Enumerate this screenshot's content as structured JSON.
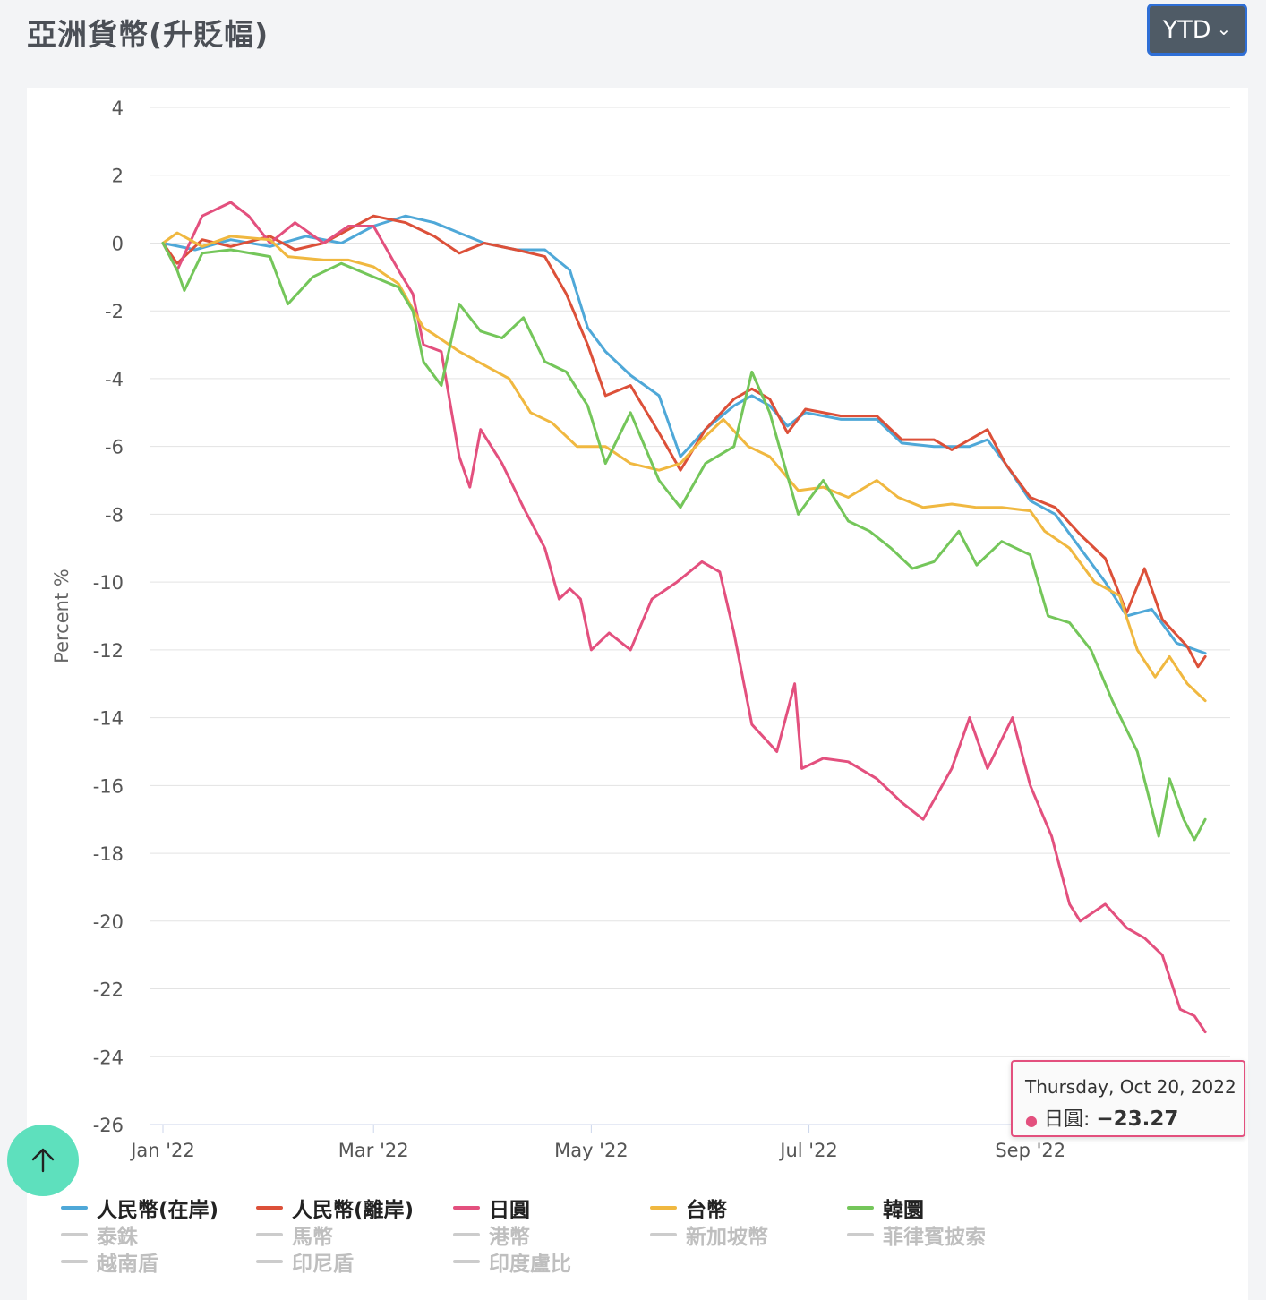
{
  "header": {
    "title": "亞洲貨幣(升貶幅)",
    "range_label": "YTD"
  },
  "tooltip": {
    "date": "Thursday, Oct 20, 2022",
    "series": "日圓",
    "value": "−23.27"
  },
  "legend": [
    {
      "name": "人民幣(在岸)",
      "color": "#4fa8d8",
      "active": true
    },
    {
      "name": "人民幣(離岸)",
      "color": "#dc5039",
      "active": true
    },
    {
      "name": "日圓",
      "color": "#e3507e",
      "active": true
    },
    {
      "name": "台幣",
      "color": "#f0b840",
      "active": true
    },
    {
      "name": "韓圜",
      "color": "#74c65a",
      "active": true
    },
    {
      "name": "泰銖",
      "color": "#cccccc",
      "active": false
    },
    {
      "name": "馬幣",
      "color": "#cccccc",
      "active": false
    },
    {
      "name": "港幣",
      "color": "#cccccc",
      "active": false
    },
    {
      "name": "新加坡幣",
      "color": "#cccccc",
      "active": false
    },
    {
      "name": "菲律賓披索",
      "color": "#cccccc",
      "active": false
    },
    {
      "name": "越南盾",
      "color": "#cccccc",
      "active": false
    },
    {
      "name": "印尼盾",
      "color": "#cccccc",
      "active": false
    },
    {
      "name": "印度盧比",
      "color": "#cccccc",
      "active": false
    }
  ],
  "chart_data": {
    "type": "line",
    "title": "亞洲貨幣(升貶幅)",
    "xlabel": "",
    "ylabel": "Percent %",
    "ylim": [
      -26,
      4
    ],
    "yticks": [
      4,
      2,
      0,
      -2,
      -4,
      -6,
      -8,
      -10,
      -12,
      -14,
      -16,
      -18,
      -20,
      -22,
      -24,
      -26
    ],
    "xlim": [
      "2022-01-01",
      "2022-10-24"
    ],
    "xticks": [
      {
        "date": "2022-01-01",
        "label": "Jan '22"
      },
      {
        "date": "2022-03-01",
        "label": "Mar '22"
      },
      {
        "date": "2022-05-01",
        "label": "May '22"
      },
      {
        "date": "2022-07-01",
        "label": "Jul '22"
      },
      {
        "date": "2022-09-01",
        "label": "Sep '22"
      }
    ],
    "grid": true,
    "legend_position": "bottom",
    "series": [
      {
        "name": "人民幣(在岸)",
        "color": "#4fa8d8",
        "points": [
          [
            "2022-01-01",
            0
          ],
          [
            "2022-01-10",
            -0.2
          ],
          [
            "2022-01-20",
            0.1
          ],
          [
            "2022-01-31",
            -0.1
          ],
          [
            "2022-02-10",
            0.2
          ],
          [
            "2022-02-20",
            0
          ],
          [
            "2022-03-01",
            0.5
          ],
          [
            "2022-03-10",
            0.8
          ],
          [
            "2022-03-18",
            0.6
          ],
          [
            "2022-03-25",
            0.3
          ],
          [
            "2022-04-01",
            0
          ],
          [
            "2022-04-10",
            -0.2
          ],
          [
            "2022-04-18",
            -0.2
          ],
          [
            "2022-04-25",
            -0.8
          ],
          [
            "2022-04-30",
            -2.5
          ],
          [
            "2022-05-05",
            -3.2
          ],
          [
            "2022-05-12",
            -3.9
          ],
          [
            "2022-05-20",
            -4.5
          ],
          [
            "2022-05-26",
            -6.3
          ],
          [
            "2022-06-02",
            -5.5
          ],
          [
            "2022-06-10",
            -4.8
          ],
          [
            "2022-06-15",
            -4.5
          ],
          [
            "2022-06-20",
            -4.8
          ],
          [
            "2022-06-25",
            -5.4
          ],
          [
            "2022-06-30",
            -5.0
          ],
          [
            "2022-07-10",
            -5.2
          ],
          [
            "2022-07-20",
            -5.2
          ],
          [
            "2022-07-27",
            -5.9
          ],
          [
            "2022-08-05",
            -6.0
          ],
          [
            "2022-08-15",
            -6.0
          ],
          [
            "2022-08-20",
            -5.8
          ],
          [
            "2022-08-25",
            -6.5
          ],
          [
            "2022-09-01",
            -7.6
          ],
          [
            "2022-09-08",
            -8.0
          ],
          [
            "2022-09-15",
            -9.0
          ],
          [
            "2022-09-22",
            -10.0
          ],
          [
            "2022-09-28",
            -11.0
          ],
          [
            "2022-10-05",
            -10.8
          ],
          [
            "2022-10-12",
            -11.8
          ],
          [
            "2022-10-20",
            -12.1
          ]
        ]
      },
      {
        "name": "人民幣(離岸)",
        "color": "#dc5039",
        "points": [
          [
            "2022-01-01",
            0
          ],
          [
            "2022-01-05",
            -0.6
          ],
          [
            "2022-01-12",
            0.1
          ],
          [
            "2022-01-20",
            -0.1
          ],
          [
            "2022-01-31",
            0.2
          ],
          [
            "2022-02-07",
            -0.2
          ],
          [
            "2022-02-15",
            0
          ],
          [
            "2022-02-22",
            0.4
          ],
          [
            "2022-03-01",
            0.8
          ],
          [
            "2022-03-10",
            0.6
          ],
          [
            "2022-03-18",
            0.2
          ],
          [
            "2022-03-25",
            -0.3
          ],
          [
            "2022-04-01",
            0
          ],
          [
            "2022-04-10",
            -0.2
          ],
          [
            "2022-04-18",
            -0.4
          ],
          [
            "2022-04-24",
            -1.5
          ],
          [
            "2022-04-30",
            -3.0
          ],
          [
            "2022-05-05",
            -4.5
          ],
          [
            "2022-05-12",
            -4.2
          ],
          [
            "2022-05-20",
            -5.6
          ],
          [
            "2022-05-26",
            -6.7
          ],
          [
            "2022-06-02",
            -5.5
          ],
          [
            "2022-06-10",
            -4.6
          ],
          [
            "2022-06-15",
            -4.3
          ],
          [
            "2022-06-20",
            -4.6
          ],
          [
            "2022-06-25",
            -5.6
          ],
          [
            "2022-06-30",
            -4.9
          ],
          [
            "2022-07-10",
            -5.1
          ],
          [
            "2022-07-20",
            -5.1
          ],
          [
            "2022-07-27",
            -5.8
          ],
          [
            "2022-08-05",
            -5.8
          ],
          [
            "2022-08-10",
            -6.1
          ],
          [
            "2022-08-20",
            -5.5
          ],
          [
            "2022-08-25",
            -6.5
          ],
          [
            "2022-09-01",
            -7.5
          ],
          [
            "2022-09-08",
            -7.8
          ],
          [
            "2022-09-15",
            -8.6
          ],
          [
            "2022-09-22",
            -9.3
          ],
          [
            "2022-09-28",
            -10.9
          ],
          [
            "2022-10-03",
            -9.6
          ],
          [
            "2022-10-08",
            -11.1
          ],
          [
            "2022-10-15",
            -11.9
          ],
          [
            "2022-10-18",
            -12.5
          ],
          [
            "2022-10-20",
            -12.2
          ]
        ]
      },
      {
        "name": "日圓",
        "color": "#e3507e",
        "points": [
          [
            "2022-01-01",
            0
          ],
          [
            "2022-01-05",
            -0.8
          ],
          [
            "2022-01-12",
            0.8
          ],
          [
            "2022-01-20",
            1.2
          ],
          [
            "2022-01-25",
            0.8
          ],
          [
            "2022-01-31",
            0
          ],
          [
            "2022-02-07",
            0.6
          ],
          [
            "2022-02-15",
            0
          ],
          [
            "2022-02-22",
            0.5
          ],
          [
            "2022-03-01",
            0.5
          ],
          [
            "2022-03-08",
            -0.8
          ],
          [
            "2022-03-12",
            -1.5
          ],
          [
            "2022-03-15",
            -3.0
          ],
          [
            "2022-03-20",
            -3.2
          ],
          [
            "2022-03-25",
            -6.3
          ],
          [
            "2022-03-28",
            -7.2
          ],
          [
            "2022-03-31",
            -5.5
          ],
          [
            "2022-04-06",
            -6.5
          ],
          [
            "2022-04-12",
            -7.8
          ],
          [
            "2022-04-18",
            -9.0
          ],
          [
            "2022-04-22",
            -10.5
          ],
          [
            "2022-04-25",
            -10.2
          ],
          [
            "2022-04-28",
            -10.5
          ],
          [
            "2022-05-01",
            -12.0
          ],
          [
            "2022-05-06",
            -11.5
          ],
          [
            "2022-05-12",
            -12.0
          ],
          [
            "2022-05-18",
            -10.5
          ],
          [
            "2022-05-25",
            -10.0
          ],
          [
            "2022-06-01",
            -9.4
          ],
          [
            "2022-06-06",
            -9.7
          ],
          [
            "2022-06-10",
            -11.5
          ],
          [
            "2022-06-15",
            -14.2
          ],
          [
            "2022-06-22",
            -15.0
          ],
          [
            "2022-06-27",
            -13.0
          ],
          [
            "2022-06-29",
            -15.5
          ],
          [
            "2022-07-05",
            -15.2
          ],
          [
            "2022-07-12",
            -15.3
          ],
          [
            "2022-07-20",
            -15.8
          ],
          [
            "2022-07-27",
            -16.5
          ],
          [
            "2022-08-02",
            -17.0
          ],
          [
            "2022-08-10",
            -15.5
          ],
          [
            "2022-08-15",
            -14.0
          ],
          [
            "2022-08-20",
            -15.5
          ],
          [
            "2022-08-27",
            -14.0
          ],
          [
            "2022-09-01",
            -16.0
          ],
          [
            "2022-09-07",
            -17.5
          ],
          [
            "2022-09-12",
            -19.5
          ],
          [
            "2022-09-15",
            -20.0
          ],
          [
            "2022-09-22",
            -19.5
          ],
          [
            "2022-09-28",
            -20.2
          ],
          [
            "2022-10-03",
            -20.5
          ],
          [
            "2022-10-08",
            -21.0
          ],
          [
            "2022-10-13",
            -22.6
          ],
          [
            "2022-10-17",
            -22.8
          ],
          [
            "2022-10-20",
            -23.27
          ]
        ]
      },
      {
        "name": "台幣",
        "color": "#f0b840",
        "points": [
          [
            "2022-01-01",
            0
          ],
          [
            "2022-01-05",
            0.3
          ],
          [
            "2022-01-12",
            -0.1
          ],
          [
            "2022-01-20",
            0.2
          ],
          [
            "2022-01-31",
            0.1
          ],
          [
            "2022-02-05",
            -0.4
          ],
          [
            "2022-02-15",
            -0.5
          ],
          [
            "2022-02-22",
            -0.5
          ],
          [
            "2022-03-01",
            -0.7
          ],
          [
            "2022-03-08",
            -1.2
          ],
          [
            "2022-03-15",
            -2.5
          ],
          [
            "2022-03-18",
            -2.7
          ],
          [
            "2022-03-25",
            -3.2
          ],
          [
            "2022-04-01",
            -3.6
          ],
          [
            "2022-04-08",
            -4.0
          ],
          [
            "2022-04-14",
            -5.0
          ],
          [
            "2022-04-20",
            -5.3
          ],
          [
            "2022-04-27",
            -6.0
          ],
          [
            "2022-05-05",
            -6.0
          ],
          [
            "2022-05-12",
            -6.5
          ],
          [
            "2022-05-20",
            -6.7
          ],
          [
            "2022-05-26",
            -6.5
          ],
          [
            "2022-06-01",
            -5.8
          ],
          [
            "2022-06-07",
            -5.2
          ],
          [
            "2022-06-14",
            -6.0
          ],
          [
            "2022-06-20",
            -6.3
          ],
          [
            "2022-06-28",
            -7.3
          ],
          [
            "2022-07-05",
            -7.2
          ],
          [
            "2022-07-12",
            -7.5
          ],
          [
            "2022-07-20",
            -7.0
          ],
          [
            "2022-07-26",
            -7.5
          ],
          [
            "2022-08-02",
            -7.8
          ],
          [
            "2022-08-10",
            -7.7
          ],
          [
            "2022-08-17",
            -7.8
          ],
          [
            "2022-08-24",
            -7.8
          ],
          [
            "2022-09-01",
            -7.9
          ],
          [
            "2022-09-05",
            -8.5
          ],
          [
            "2022-09-12",
            -9.0
          ],
          [
            "2022-09-19",
            -10.0
          ],
          [
            "2022-09-26",
            -10.4
          ],
          [
            "2022-10-01",
            -12.0
          ],
          [
            "2022-10-06",
            -12.8
          ],
          [
            "2022-10-10",
            -12.2
          ],
          [
            "2022-10-15",
            -13.0
          ],
          [
            "2022-10-20",
            -13.5
          ]
        ]
      },
      {
        "name": "韓圜",
        "color": "#74c65a",
        "points": [
          [
            "2022-01-01",
            0
          ],
          [
            "2022-01-05",
            -0.8
          ],
          [
            "2022-01-07",
            -1.4
          ],
          [
            "2022-01-12",
            -0.3
          ],
          [
            "2022-01-20",
            -0.2
          ],
          [
            "2022-01-31",
            -0.4
          ],
          [
            "2022-02-05",
            -1.8
          ],
          [
            "2022-02-12",
            -1.0
          ],
          [
            "2022-02-20",
            -0.6
          ],
          [
            "2022-03-01",
            -1.0
          ],
          [
            "2022-03-08",
            -1.3
          ],
          [
            "2022-03-12",
            -2.0
          ],
          [
            "2022-03-15",
            -3.5
          ],
          [
            "2022-03-20",
            -4.2
          ],
          [
            "2022-03-25",
            -1.8
          ],
          [
            "2022-03-31",
            -2.6
          ],
          [
            "2022-04-06",
            -2.8
          ],
          [
            "2022-04-12",
            -2.2
          ],
          [
            "2022-04-18",
            -3.5
          ],
          [
            "2022-04-24",
            -3.8
          ],
          [
            "2022-04-30",
            -4.8
          ],
          [
            "2022-05-05",
            -6.5
          ],
          [
            "2022-05-12",
            -5.0
          ],
          [
            "2022-05-20",
            -7.0
          ],
          [
            "2022-05-26",
            -7.8
          ],
          [
            "2022-06-02",
            -6.5
          ],
          [
            "2022-06-10",
            -6.0
          ],
          [
            "2022-06-15",
            -3.8
          ],
          [
            "2022-06-20",
            -5.0
          ],
          [
            "2022-06-28",
            -8.0
          ],
          [
            "2022-07-05",
            -7.0
          ],
          [
            "2022-07-12",
            -8.2
          ],
          [
            "2022-07-18",
            -8.5
          ],
          [
            "2022-07-24",
            -9.0
          ],
          [
            "2022-07-30",
            -9.6
          ],
          [
            "2022-08-05",
            -9.4
          ],
          [
            "2022-08-12",
            -8.5
          ],
          [
            "2022-08-17",
            -9.5
          ],
          [
            "2022-08-24",
            -8.8
          ],
          [
            "2022-09-01",
            -9.2
          ],
          [
            "2022-09-06",
            -11.0
          ],
          [
            "2022-09-12",
            -11.2
          ],
          [
            "2022-09-18",
            -12.0
          ],
          [
            "2022-09-24",
            -13.5
          ],
          [
            "2022-10-01",
            -15.0
          ],
          [
            "2022-10-07",
            -17.5
          ],
          [
            "2022-10-10",
            -15.8
          ],
          [
            "2022-10-14",
            -17.0
          ],
          [
            "2022-10-17",
            -17.6
          ],
          [
            "2022-10-20",
            -17.0
          ]
        ]
      }
    ]
  }
}
